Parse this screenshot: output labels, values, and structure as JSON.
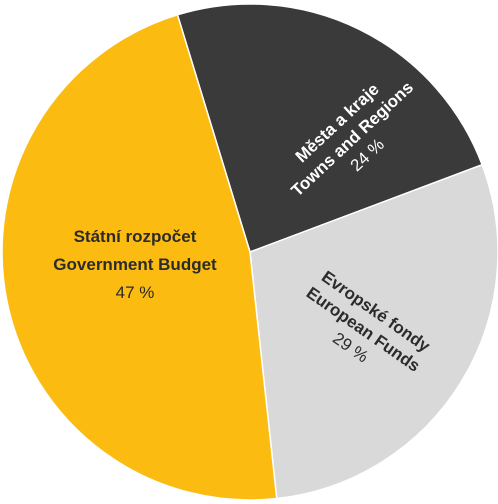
{
  "chart_data": {
    "type": "pie",
    "title": "",
    "slices": [
      {
        "label_cs": "Města a kraje",
        "label_en": "Towns and Regions",
        "value": 24,
        "value_text": "24 %",
        "color": "#3a3a3a",
        "text_color": "#ffffff"
      },
      {
        "label_cs": "Evropské fondy",
        "label_en": "European Funds",
        "value": 29,
        "value_text": "29 %",
        "color": "#d9d9d9",
        "text_color": "#2b2b2b"
      },
      {
        "label_cs": "Státní rozpočet",
        "label_en": "Government Budget",
        "value": 47,
        "value_text": "47 %",
        "color": "#fbbb10",
        "text_color": "#2b2b2b"
      }
    ]
  }
}
